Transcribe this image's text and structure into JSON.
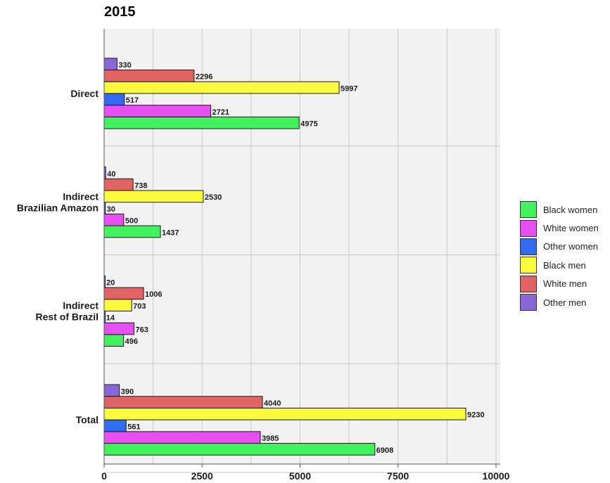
{
  "chart_data": {
    "type": "bar",
    "orientation": "horizontal",
    "title": "2015",
    "xlabel": "",
    "ylabel": "",
    "xlim": [
      0,
      10000
    ],
    "xticks": [
      "0",
      "2500",
      "5000",
      "7500",
      "10000"
    ],
    "grid": true,
    "legend_position": "right",
    "categories": [
      "Direct",
      "Indirect\nBrazilian Amazon",
      "Indirect\nRest of Brazil",
      "Total"
    ],
    "series": [
      {
        "name": "Black women",
        "color": "#41F25E",
        "values": [
          4975,
          1437,
          496,
          6908
        ]
      },
      {
        "name": "White women",
        "color": "#E74FF2",
        "values": [
          2721,
          500,
          763,
          3985
        ]
      },
      {
        "name": "Other women",
        "color": "#336BEF",
        "values": [
          517,
          30,
          14,
          561
        ]
      },
      {
        "name": "Black men",
        "color": "#FBFA3C",
        "values": [
          5997,
          2530,
          703,
          9230
        ]
      },
      {
        "name": "White men",
        "color": "#E06464",
        "values": [
          2296,
          738,
          1006,
          4040
        ]
      },
      {
        "name": "Other men",
        "color": "#8A67D8",
        "values": [
          330,
          40,
          20,
          390
        ]
      }
    ]
  }
}
